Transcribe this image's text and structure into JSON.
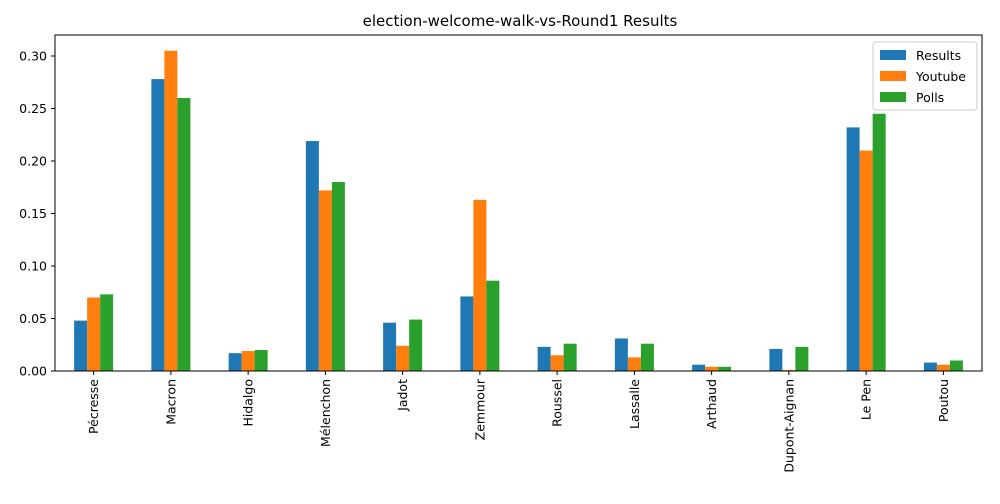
{
  "chart_data": {
    "type": "bar",
    "title": "election-welcome-walk-vs-Round1 Results",
    "xlabel": "",
    "ylabel": "",
    "categories": [
      "Pécresse",
      "Macron",
      "Hidalgo",
      "Mélenchon",
      "Jadot",
      "Zemmour",
      "Roussel",
      "Lassalle",
      "Arthaud",
      "Dupont-Aignan",
      "Le Pen",
      "Poutou"
    ],
    "series": [
      {
        "name": "Results",
        "color": "#1f77b4",
        "values": [
          0.048,
          0.278,
          0.017,
          0.219,
          0.046,
          0.071,
          0.023,
          0.031,
          0.006,
          0.021,
          0.232,
          0.008
        ]
      },
      {
        "name": "Youtube",
        "color": "#ff7f0e",
        "values": [
          0.07,
          0.305,
          0.019,
          0.172,
          0.024,
          0.163,
          0.015,
          0.013,
          0.004,
          0.001,
          0.21,
          0.006
        ]
      },
      {
        "name": "Polls",
        "color": "#2ca02c",
        "values": [
          0.073,
          0.26,
          0.02,
          0.18,
          0.049,
          0.086,
          0.026,
          0.026,
          0.004,
          0.023,
          0.245,
          0.01
        ]
      }
    ],
    "ylim": [
      0,
      0.32
    ],
    "yticks": [
      "0.00",
      "0.05",
      "0.10",
      "0.15",
      "0.20",
      "0.25",
      "0.30"
    ],
    "ytick_values": [
      0,
      0.05,
      0.1,
      0.15,
      0.2,
      0.25,
      0.3
    ],
    "grid": false,
    "legend_position": "top-right"
  }
}
